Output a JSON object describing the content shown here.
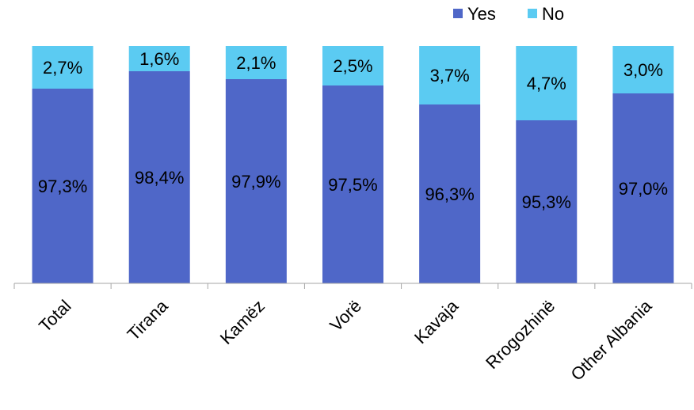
{
  "chart_data": {
    "type": "bar",
    "stacked": true,
    "percent_stacked": true,
    "categories": [
      "Total",
      "Tirana",
      "Kamëz",
      "Vorë",
      "Kavaja",
      "Rrogozhinë",
      "Other Albania"
    ],
    "series": [
      {
        "name": "Yes",
        "color": "#4F67C8",
        "values": [
          97.3,
          98.4,
          97.9,
          97.5,
          96.3,
          95.3,
          97.0
        ],
        "labels": [
          "97,3%",
          "98,4%",
          "97,9%",
          "97,5%",
          "96,3%",
          "95,3%",
          "97,0%"
        ]
      },
      {
        "name": "No",
        "color": "#5BCBF2",
        "values": [
          2.7,
          1.6,
          2.1,
          2.5,
          3.7,
          4.7,
          3.0
        ],
        "labels": [
          "2,7%",
          "1,6%",
          "2,1%",
          "2,5%",
          "3,7%",
          "4,7%",
          "3,0%"
        ]
      }
    ],
    "legend_position": "top-right",
    "axis_line_color": "#A6A6A6",
    "gridlines": false,
    "title": "",
    "xlabel": "",
    "ylabel": ""
  }
}
